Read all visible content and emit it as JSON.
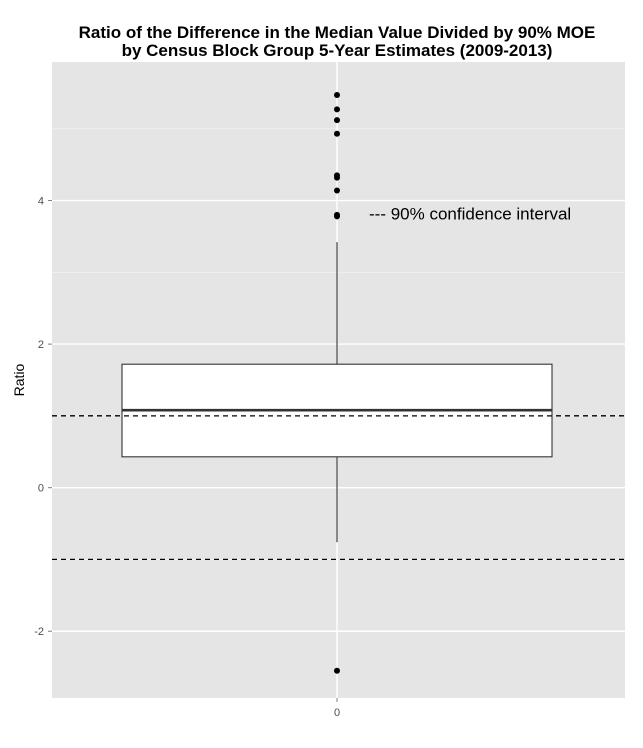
{
  "chart_data": {
    "type": "box",
    "title": "Ratio of the Difference in the Median Value Divided by 90% MOE",
    "subtitle": "by Census Block Group 5-Year Estimates (2009-2013)",
    "xlabel": "",
    "ylabel": "Ratio",
    "categories": [
      "0"
    ],
    "x_ticks": [
      "0"
    ],
    "y_ticks": [
      -2,
      0,
      2,
      4
    ],
    "ylim": [
      -2.93,
      5.93
    ],
    "grid": true,
    "box": {
      "min": -0.76,
      "q1": 0.43,
      "median": 1.08,
      "q3": 1.72,
      "max": 3.42
    },
    "outliers": [
      5.47,
      5.27,
      5.12,
      4.93,
      4.35,
      4.32,
      4.14,
      3.8,
      3.78,
      -2.55
    ],
    "reference_lines": [
      1,
      -1
    ],
    "annotation": "--- 90% confidence interval",
    "annotation_at": {
      "x": 0.35,
      "y": 3.82
    },
    "colors": {
      "panel": "#e5e5e5",
      "grid_major": "#ffffff",
      "grid_minor": "#f2f2f2",
      "box_fill": "#ffffff",
      "box_line": "#333333",
      "point": "#000000",
      "reference_line": "#000000"
    }
  }
}
